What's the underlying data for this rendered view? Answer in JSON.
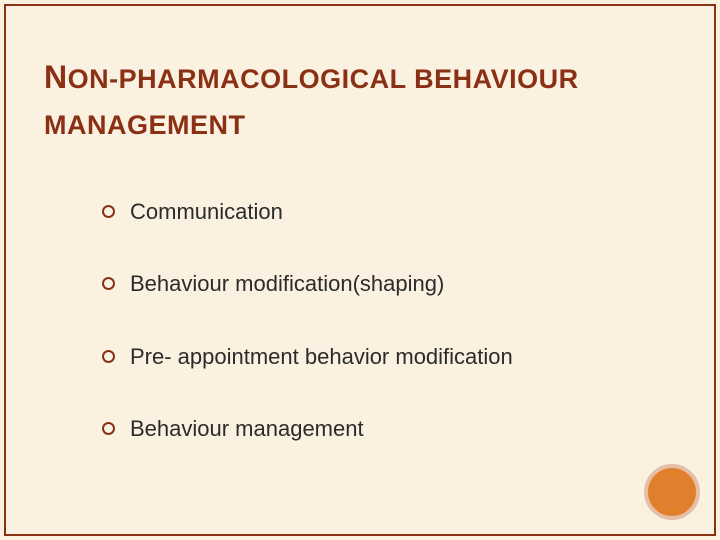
{
  "theme": {
    "background_color": "#fbf1e0",
    "accent_color": "#8a3015",
    "body_text_color": "#2b2b2b",
    "circle_fill_color": "#e0802c",
    "circle_border_color": "#e6bfa6",
    "title_fontsize_pt": 27,
    "title_cap_fontsize_pt": 32,
    "item_fontsize_pt": 22
  },
  "title": {
    "line1": {
      "cap1": "N",
      "rest1": "ON",
      "sep": "-",
      "rest2": "PHARMACOLOGICAL BEHAVIOUR"
    },
    "line2": "MANAGEMENT"
  },
  "items": [
    "Communication",
    "Behaviour modification(shaping)",
    "Pre- appointment behavior modification",
    "Behaviour management"
  ]
}
